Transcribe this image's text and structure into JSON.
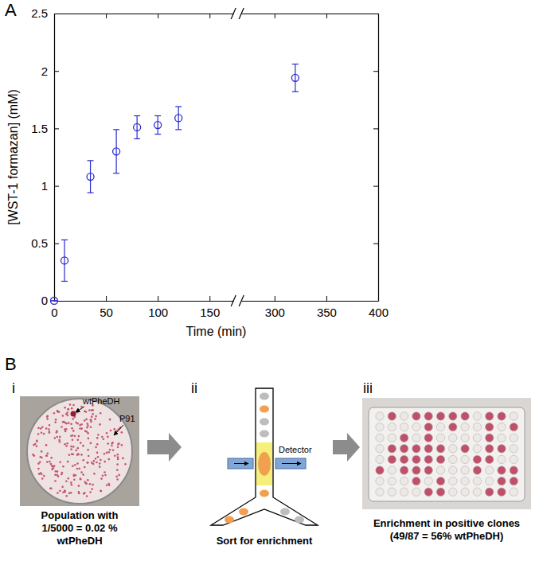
{
  "chart_data": {
    "type": "scatter",
    "annotations": [
      "A"
    ],
    "x_label": "Time (min)",
    "y_label": "[WST-1 formazan] (mM)",
    "x": [
      0,
      10,
      35,
      60,
      80,
      100,
      120,
      320
    ],
    "values": [
      0,
      0.35,
      1.08,
      1.3,
      1.51,
      1.53,
      1.59,
      1.94
    ],
    "errors": [
      0,
      0.18,
      0.14,
      0.19,
      0.1,
      0.08,
      0.1,
      0.12
    ],
    "color": "#2b2bd1",
    "marker": "circle-open",
    "xlim": [
      0,
      400
    ],
    "x_break": [
      173,
      268
    ],
    "xticks": [
      0,
      50,
      100,
      150,
      300,
      350,
      400
    ],
    "ylim": [
      0,
      2.5
    ],
    "yticks": [
      0,
      0.5,
      1,
      1.5,
      2,
      2.5
    ]
  },
  "diagram": {
    "label": "B",
    "steps": [
      {
        "numeral": "i",
        "annotations": [
          "wtPheDH",
          "P91"
        ],
        "caption": [
          "Population with",
          "1/5000 = 0.02 %",
          "wtPheDH"
        ]
      },
      {
        "numeral": "ii",
        "annotations": [
          "Detector"
        ],
        "caption": [
          "Sort for enrichment"
        ]
      },
      {
        "numeral": "iii",
        "caption": [
          "Enrichment in positive clones",
          "(49/87 = 56% wtPheDH)"
        ]
      }
    ]
  }
}
